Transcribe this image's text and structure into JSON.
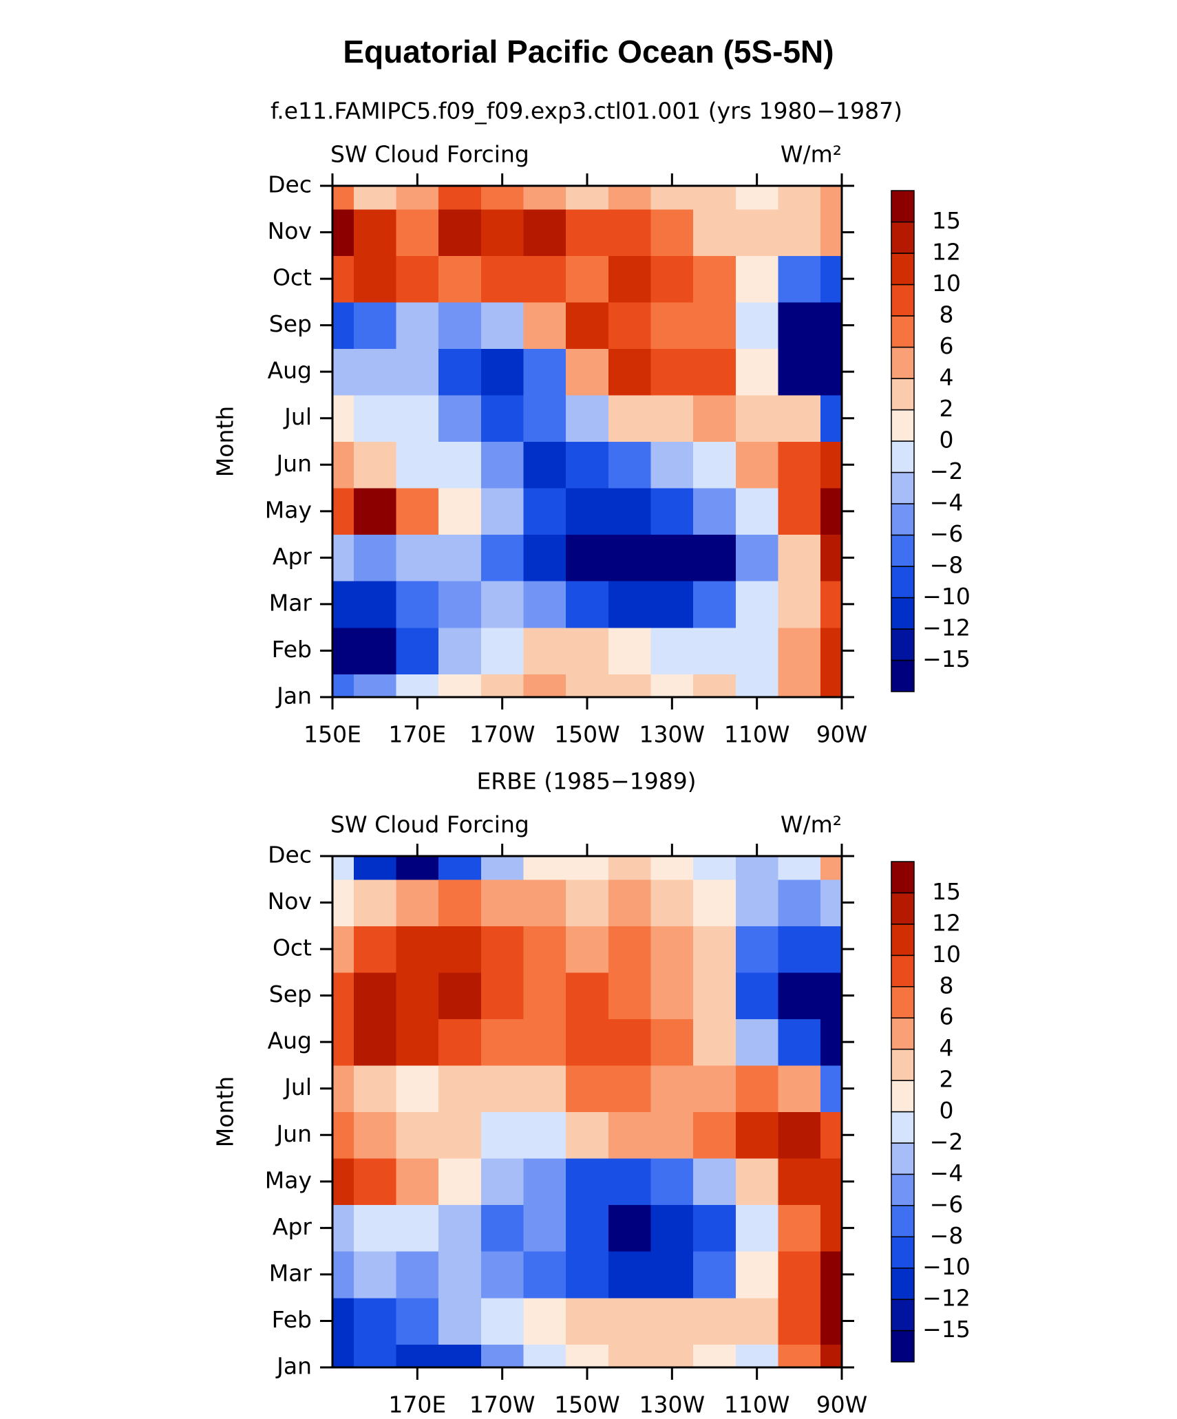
{
  "title": "Equatorial Pacific Ocean (5S-5N)",
  "chart_data": [
    {
      "type": "heatmap",
      "title": "f.e11.FAMIPC5.f09_f09.exp3.ctl01.001 (yrs 1980−1987)",
      "left_string": "SW Cloud Forcing",
      "right_string": "W/m²",
      "ylabel": "Month",
      "y_categories": [
        "Jan",
        "Feb",
        "Mar",
        "Apr",
        "May",
        "Jun",
        "Jul",
        "Aug",
        "Sep",
        "Oct",
        "Nov",
        "Dec"
      ],
      "x": [
        150,
        160,
        170,
        180,
        190,
        200,
        210,
        220,
        230,
        240,
        250,
        260,
        270
      ],
      "xlim": [
        150,
        270
      ],
      "xticks": [
        {
          "value": 150,
          "label": "150E"
        },
        {
          "value": 170,
          "label": "170E"
        },
        {
          "value": 190,
          "label": "170W"
        },
        {
          "value": 210,
          "label": "150W"
        },
        {
          "value": 230,
          "label": "130W"
        },
        {
          "value": 250,
          "label": "110W"
        },
        {
          "value": 270,
          "label": "90W"
        }
      ],
      "values": [
        [
          -8,
          -6,
          -2,
          0,
          2,
          4,
          2,
          2,
          0,
          2,
          -2,
          4,
          10
        ],
        [
          -16,
          -16,
          -10,
          -4,
          -2,
          2,
          2,
          0,
          -2,
          -2,
          -2,
          4,
          10
        ],
        [
          -12,
          -12,
          -8,
          -6,
          -4,
          -6,
          -10,
          -12,
          -12,
          -8,
          -2,
          2,
          8
        ],
        [
          -4,
          -6,
          -4,
          -4,
          -8,
          -12,
          -16,
          -16,
          -16,
          -16,
          -6,
          2,
          12
        ],
        [
          8,
          15,
          6,
          0,
          -4,
          -10,
          -12,
          -12,
          -10,
          -6,
          -2,
          8,
          15
        ],
        [
          4,
          2,
          -2,
          -2,
          -6,
          -12,
          -10,
          -8,
          -4,
          -2,
          4,
          8,
          10
        ],
        [
          0,
          -2,
          -2,
          -6,
          -10,
          -8,
          -4,
          2,
          2,
          4,
          2,
          2,
          -10
        ],
        [
          -4,
          -4,
          -4,
          -10,
          -12,
          -8,
          4,
          10,
          8,
          8,
          0,
          -16,
          -16
        ],
        [
          -10,
          -8,
          -4,
          -6,
          -4,
          4,
          10,
          8,
          6,
          6,
          -2,
          -16,
          -16
        ],
        [
          8,
          10,
          8,
          6,
          8,
          8,
          6,
          10,
          8,
          6,
          0,
          -8,
          -10
        ],
        [
          15,
          10,
          6,
          12,
          10,
          12,
          8,
          8,
          6,
          2,
          2,
          2,
          4
        ],
        [
          6,
          2,
          4,
          8,
          6,
          4,
          2,
          4,
          2,
          2,
          0,
          2,
          4
        ]
      ],
      "levels": [
        {
          "value": -15,
          "label": "−15"
        },
        {
          "value": -12,
          "label": "−12"
        },
        {
          "value": -10,
          "label": "−10"
        },
        {
          "value": -8,
          "label": "−8"
        },
        {
          "value": -6,
          "label": "−6"
        },
        {
          "value": -4,
          "label": "−4"
        },
        {
          "value": -2,
          "label": "−2"
        },
        0,
        2,
        4,
        6,
        8,
        10,
        12,
        15
      ],
      "colors": [
        "#00007f",
        "#0014a0",
        "#0030c8",
        "#1a4fe6",
        "#4070f2",
        "#7295f5",
        "#a6bdf8",
        "#d5e3fc",
        "#fdeadb",
        "#fbcbae",
        "#f9a077",
        "#f5743f",
        "#ea4c1b",
        "#d22e04",
        "#b51900",
        "#8c0000"
      ]
    },
    {
      "type": "heatmap",
      "title": "ERBE (1985−1989)",
      "left_string": "SW Cloud Forcing",
      "right_string": "W/m²",
      "ylabel": "Month",
      "y_categories": [
        "Jan",
        "Feb",
        "Mar",
        "Apr",
        "May",
        "Jun",
        "Jul",
        "Aug",
        "Sep",
        "Oct",
        "Nov",
        "Dec"
      ],
      "x": [
        150,
        160,
        170,
        180,
        190,
        200,
        210,
        220,
        230,
        240,
        250,
        260,
        270
      ],
      "xlim": [
        150,
        270
      ],
      "xticks": [
        {
          "value": 170,
          "label": "170E"
        },
        {
          "value": 190,
          "label": "170W"
        },
        {
          "value": 210,
          "label": "150W"
        },
        {
          "value": 230,
          "label": "130W"
        },
        {
          "value": 250,
          "label": "110W"
        },
        {
          "value": 270,
          "label": "90W"
        }
      ],
      "values": [
        [
          -12,
          -10,
          -12,
          -12,
          -6,
          -2,
          0,
          2,
          2,
          0,
          -2,
          6,
          12
        ],
        [
          -12,
          -10,
          -8,
          -4,
          -2,
          0,
          2,
          2,
          2,
          2,
          2,
          8,
          15
        ],
        [
          -6,
          -4,
          -6,
          -4,
          -6,
          -8,
          -10,
          -12,
          -12,
          -8,
          0,
          8,
          15
        ],
        [
          -4,
          -2,
          -2,
          -4,
          -8,
          -6,
          -10,
          -16,
          -12,
          -10,
          -2,
          6,
          10
        ],
        [
          10,
          8,
          4,
          0,
          -4,
          -6,
          -10,
          -10,
          -8,
          -4,
          2,
          10,
          10
        ],
        [
          6,
          4,
          2,
          2,
          -2,
          -2,
          2,
          4,
          4,
          6,
          10,
          12,
          8
        ],
        [
          4,
          2,
          0,
          2,
          2,
          2,
          6,
          6,
          4,
          4,
          6,
          4,
          -8
        ],
        [
          8,
          12,
          10,
          8,
          6,
          6,
          8,
          8,
          6,
          2,
          -4,
          -10,
          -16
        ],
        [
          8,
          12,
          10,
          12,
          8,
          6,
          8,
          6,
          4,
          2,
          -10,
          -16,
          -16
        ],
        [
          4,
          8,
          10,
          10,
          8,
          6,
          4,
          6,
          4,
          2,
          -8,
          -10,
          -10
        ],
        [
          0,
          2,
          4,
          6,
          4,
          4,
          2,
          4,
          2,
          0,
          -4,
          -6,
          -4
        ],
        [
          -2,
          -12,
          -16,
          -10,
          -4,
          0,
          0,
          2,
          0,
          -2,
          -4,
          -2,
          4
        ]
      ],
      "levels": [
        {
          "value": -15,
          "label": "−15"
        },
        {
          "value": -12,
          "label": "−12"
        },
        {
          "value": -10,
          "label": "−10"
        },
        {
          "value": -8,
          "label": "−8"
        },
        {
          "value": -6,
          "label": "−6"
        },
        {
          "value": -4,
          "label": "−4"
        },
        {
          "value": -2,
          "label": "−2"
        },
        0,
        2,
        4,
        6,
        8,
        10,
        12,
        15
      ],
      "colors": [
        "#00007f",
        "#0014a0",
        "#0030c8",
        "#1a4fe6",
        "#4070f2",
        "#7295f5",
        "#a6bdf8",
        "#d5e3fc",
        "#fdeadb",
        "#fbcbae",
        "#f9a077",
        "#f5743f",
        "#ea4c1b",
        "#d22e04",
        "#b51900",
        "#8c0000"
      ]
    }
  ]
}
